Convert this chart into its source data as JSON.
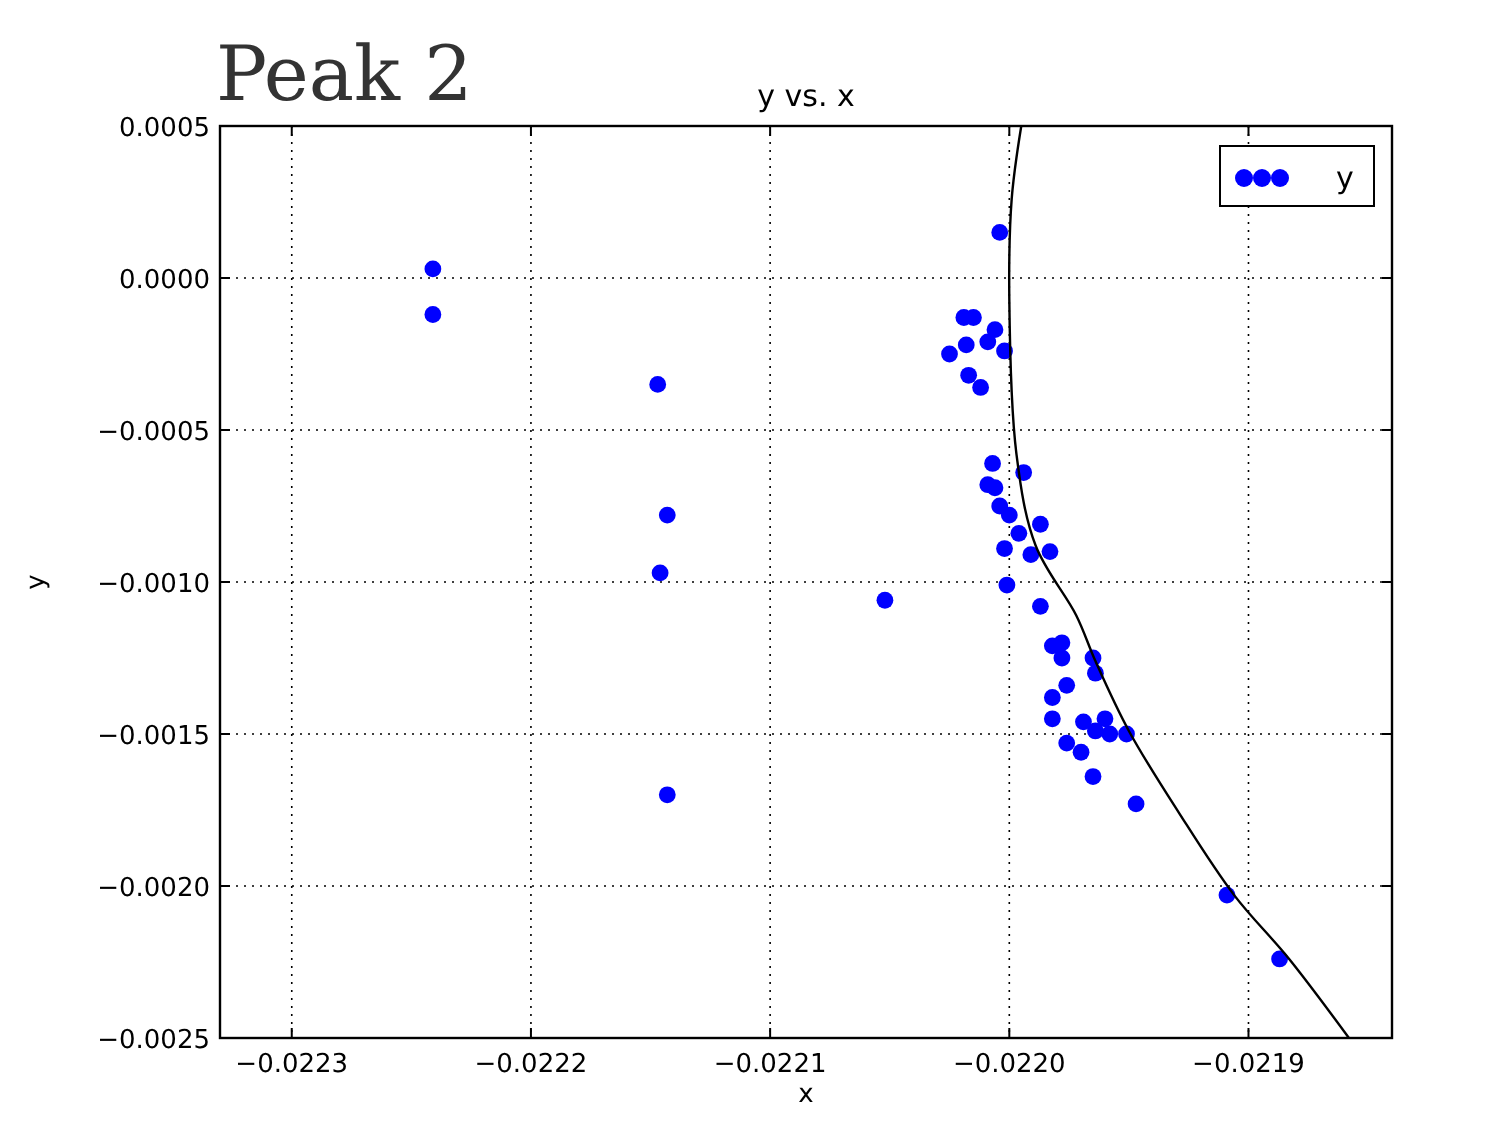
{
  "chart_data": {
    "type": "scatter",
    "title": "y vs. x",
    "xlabel": "x",
    "ylabel": "y",
    "annotations": [
      "Peak 2"
    ],
    "xlim": [
      -0.02233,
      -0.02184
    ],
    "ylim": [
      -0.0025,
      0.0005
    ],
    "xticks": [
      {
        "value": -0.0223,
        "label": "−0.0223"
      },
      {
        "value": -0.0222,
        "label": "−0.0222"
      },
      {
        "value": -0.0221,
        "label": "−0.0221"
      },
      {
        "value": -0.022,
        "label": "−0.0220"
      },
      {
        "value": -0.0219,
        "label": "−0.0219"
      }
    ],
    "yticks": [
      {
        "value": -0.0025,
        "label": "−0.0025"
      },
      {
        "value": -0.002,
        "label": "−0.0020"
      },
      {
        "value": -0.0015,
        "label": "−0.0015"
      },
      {
        "value": -0.001,
        "label": "−0.0010"
      },
      {
        "value": -0.0005,
        "label": "−0.0005"
      },
      {
        "value": 0,
        "label": "0.0000"
      },
      {
        "value": 0.0005,
        "label": "0.0005"
      }
    ],
    "grid": true,
    "legend": "top right",
    "marker": "circle",
    "series": [
      {
        "name": "y",
        "color": "#0000ff",
        "x": [
          -0.022241,
          -0.022241,
          -0.022147,
          -0.022143,
          -0.022146,
          -0.022143,
          -0.022052,
          -0.022004,
          -0.022019,
          -0.022015,
          -0.022018,
          -0.022025,
          -0.022006,
          -0.022009,
          -0.022002,
          -0.022017,
          -0.022012,
          -0.022007,
          -0.021994,
          -0.022009,
          -0.022006,
          -0.022004,
          -0.022,
          -0.021996,
          -0.021987,
          -0.022002,
          -0.021991,
          -0.021983,
          -0.022001,
          -0.021987,
          -0.021982,
          -0.021978,
          -0.021978,
          -0.021965,
          -0.021964,
          -0.021976,
          -0.021982,
          -0.021982,
          -0.021969,
          -0.021964,
          -0.02196,
          -0.021958,
          -0.021951,
          -0.021976,
          -0.02197,
          -0.021965,
          -0.021947,
          -0.021909,
          -0.021887
        ],
        "values": [
          3e-05,
          -0.00012,
          -0.00035,
          -0.00078,
          -0.00097,
          -0.0017,
          -0.00106,
          0.00015,
          -0.00013,
          -0.00013,
          -0.00022,
          -0.00025,
          -0.00017,
          -0.00021,
          -0.00024,
          -0.00032,
          -0.00036,
          -0.00061,
          -0.00064,
          -0.00068,
          -0.00069,
          -0.00075,
          -0.00078,
          -0.00084,
          -0.00081,
          -0.00089,
          -0.00091,
          -0.0009,
          -0.00101,
          -0.00108,
          -0.00121,
          -0.0012,
          -0.00125,
          -0.00125,
          -0.0013,
          -0.00134,
          -0.00138,
          -0.00145,
          -0.00146,
          -0.00149,
          -0.00145,
          -0.0015,
          -0.0015,
          -0.00153,
          -0.00156,
          -0.00164,
          -0.00173,
          -0.00203,
          -0.00224
        ]
      },
      {
        "type": "line",
        "color": "#000000",
        "marker": "none",
        "x": [
          -0.021995,
          -0.021999,
          -0.022,
          -0.021997,
          -0.021989,
          -0.021972,
          -0.021964,
          -0.02195,
          -0.021929,
          -0.021906,
          -0.021883,
          -0.021858
        ],
        "values": [
          0.0005,
          0.00026,
          -7e-05,
          -0.00058,
          -0.00088,
          -0.00111,
          -0.00126,
          -0.00149,
          -0.00176,
          -0.00203,
          -0.00224,
          -0.0025
        ]
      }
    ]
  }
}
